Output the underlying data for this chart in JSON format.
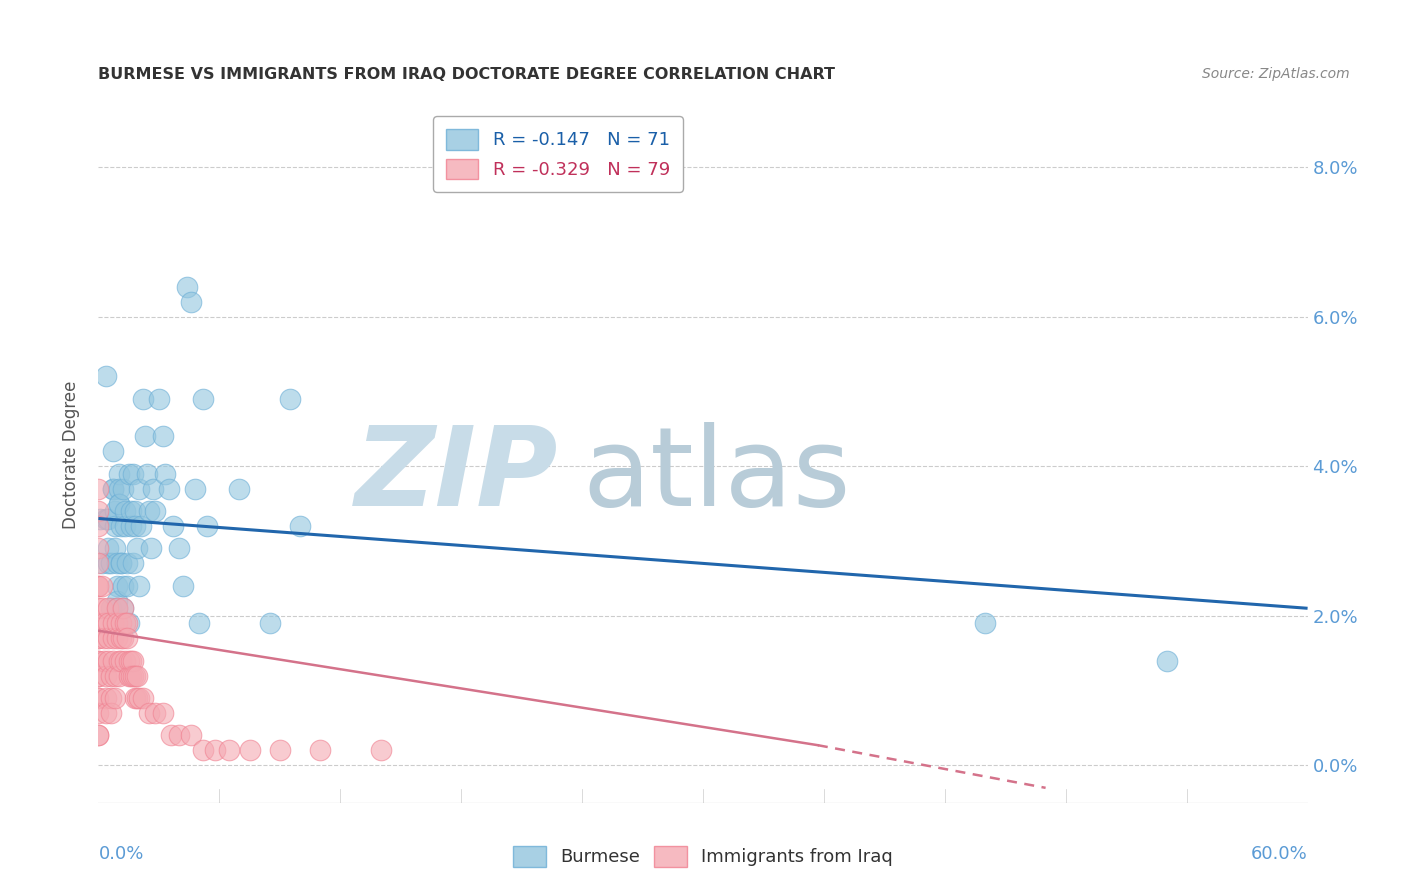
{
  "title": "BURMESE VS IMMIGRANTS FROM IRAQ DOCTORATE DEGREE CORRELATION CHART",
  "source": "Source: ZipAtlas.com",
  "ylabel": "Doctorate Degree",
  "ytick_values": [
    0.0,
    0.02,
    0.04,
    0.06,
    0.08
  ],
  "xlim": [
    0.0,
    0.6
  ],
  "ylim": [
    -0.005,
    0.088
  ],
  "legend_series": [
    "Burmese",
    "Immigrants from Iraq"
  ],
  "burmese_color": "#92c5de",
  "iraq_color": "#f4a9b2",
  "burmese_edge_color": "#6baed6",
  "iraq_edge_color": "#f08090",
  "burmese_line_color": "#2166ac",
  "iraq_line_color": "#d4728a",
  "watermark_zip": "ZIP",
  "watermark_atlas": "atlas",
  "burmese_R": -0.147,
  "burmese_N": 71,
  "iraq_R": -0.329,
  "iraq_N": 79,
  "burmese_line_start_x": 0.0,
  "burmese_line_start_y": 0.033,
  "burmese_line_end_x": 0.6,
  "burmese_line_end_y": 0.021,
  "iraq_line_start_x": 0.0,
  "iraq_line_start_y": 0.018,
  "iraq_line_end_x": 0.42,
  "iraq_line_end_y": 0.0,
  "burmese_points_x": [
    0.001,
    0.002,
    0.004,
    0.004,
    0.005,
    0.005,
    0.005,
    0.006,
    0.006,
    0.007,
    0.007,
    0.007,
    0.008,
    0.008,
    0.008,
    0.009,
    0.009,
    0.009,
    0.009,
    0.01,
    0.01,
    0.01,
    0.01,
    0.011,
    0.011,
    0.011,
    0.012,
    0.012,
    0.012,
    0.013,
    0.013,
    0.014,
    0.014,
    0.015,
    0.015,
    0.016,
    0.016,
    0.017,
    0.017,
    0.018,
    0.018,
    0.019,
    0.02,
    0.02,
    0.021,
    0.022,
    0.023,
    0.024,
    0.025,
    0.026,
    0.027,
    0.028,
    0.03,
    0.032,
    0.033,
    0.035,
    0.037,
    0.04,
    0.042,
    0.044,
    0.046,
    0.048,
    0.05,
    0.052,
    0.054,
    0.07,
    0.085,
    0.095,
    0.1,
    0.44,
    0.53
  ],
  "burmese_points_y": [
    0.033,
    0.027,
    0.052,
    0.033,
    0.033,
    0.029,
    0.027,
    0.027,
    0.021,
    0.042,
    0.037,
    0.037,
    0.034,
    0.032,
    0.029,
    0.027,
    0.024,
    0.022,
    0.021,
    0.039,
    0.037,
    0.035,
    0.035,
    0.032,
    0.027,
    0.027,
    0.024,
    0.021,
    0.037,
    0.034,
    0.032,
    0.027,
    0.024,
    0.019,
    0.039,
    0.034,
    0.032,
    0.027,
    0.039,
    0.034,
    0.032,
    0.029,
    0.024,
    0.037,
    0.032,
    0.049,
    0.044,
    0.039,
    0.034,
    0.029,
    0.037,
    0.034,
    0.049,
    0.044,
    0.039,
    0.037,
    0.032,
    0.029,
    0.024,
    0.064,
    0.062,
    0.037,
    0.019,
    0.049,
    0.032,
    0.037,
    0.019,
    0.049,
    0.032,
    0.019,
    0.014
  ],
  "iraq_points_x": [
    0.0,
    0.0,
    0.0,
    0.0,
    0.0,
    0.0,
    0.0,
    0.0,
    0.0,
    0.0,
    0.0,
    0.0,
    0.0,
    0.0,
    0.0,
    0.0,
    0.0,
    0.0,
    0.0,
    0.0,
    0.002,
    0.002,
    0.003,
    0.003,
    0.003,
    0.004,
    0.004,
    0.004,
    0.005,
    0.005,
    0.005,
    0.005,
    0.006,
    0.006,
    0.006,
    0.007,
    0.007,
    0.007,
    0.008,
    0.008,
    0.009,
    0.009,
    0.009,
    0.01,
    0.01,
    0.011,
    0.011,
    0.011,
    0.012,
    0.012,
    0.013,
    0.013,
    0.014,
    0.014,
    0.015,
    0.015,
    0.016,
    0.016,
    0.017,
    0.017,
    0.018,
    0.018,
    0.019,
    0.019,
    0.02,
    0.022,
    0.025,
    0.028,
    0.032,
    0.036,
    0.04,
    0.046,
    0.052,
    0.058,
    0.065,
    0.075,
    0.09,
    0.11,
    0.14
  ],
  "iraq_points_y": [
    0.037,
    0.034,
    0.032,
    0.029,
    0.027,
    0.024,
    0.024,
    0.021,
    0.019,
    0.017,
    0.017,
    0.014,
    0.014,
    0.012,
    0.012,
    0.009,
    0.009,
    0.007,
    0.004,
    0.004,
    0.024,
    0.021,
    0.019,
    0.017,
    0.014,
    0.012,
    0.009,
    0.007,
    0.021,
    0.019,
    0.017,
    0.014,
    0.012,
    0.009,
    0.007,
    0.019,
    0.017,
    0.014,
    0.012,
    0.009,
    0.021,
    0.019,
    0.017,
    0.014,
    0.012,
    0.019,
    0.017,
    0.014,
    0.021,
    0.017,
    0.019,
    0.014,
    0.019,
    0.017,
    0.014,
    0.012,
    0.014,
    0.012,
    0.014,
    0.012,
    0.012,
    0.009,
    0.012,
    0.009,
    0.009,
    0.009,
    0.007,
    0.007,
    0.007,
    0.004,
    0.004,
    0.004,
    0.002,
    0.002,
    0.002,
    0.002,
    0.002,
    0.002,
    0.002
  ]
}
